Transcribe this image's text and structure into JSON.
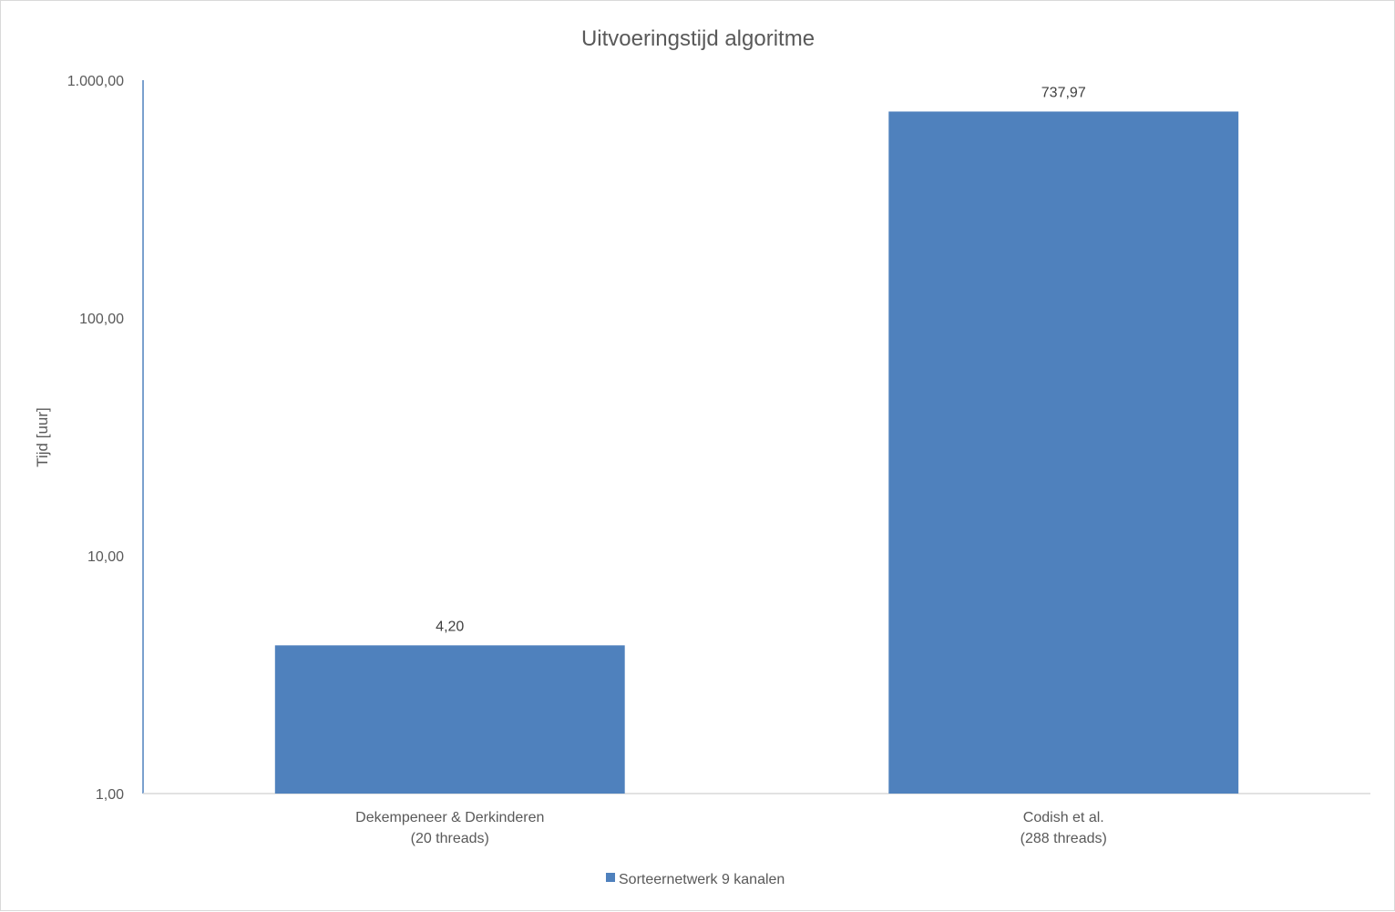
{
  "chart_data": {
    "type": "bar",
    "title": "Uitvoeringstijd algoritme",
    "ylabel": "Tijd [uur]",
    "xlabel": "",
    "yscale": "log",
    "ylim": [
      1,
      1000
    ],
    "y_ticks": [
      {
        "value": 1,
        "label": "1,00"
      },
      {
        "value": 10,
        "label": "10,00"
      },
      {
        "value": 100,
        "label": "100,00"
      },
      {
        "value": 1000,
        "label": "1.000,00"
      }
    ],
    "categories": [
      {
        "line1": "Dekempeneer & Derkinderen",
        "line2": "(20 threads)"
      },
      {
        "line1": "Codish et al.",
        "line2": "(288 threads)"
      }
    ],
    "series": [
      {
        "name": "Sorteernetwerk 9 kanalen",
        "color": "#4f81bd",
        "values": [
          4.2,
          737.97
        ],
        "data_labels": [
          "4,20",
          "737,97"
        ]
      }
    ],
    "grid": false,
    "legend": "bottom"
  }
}
